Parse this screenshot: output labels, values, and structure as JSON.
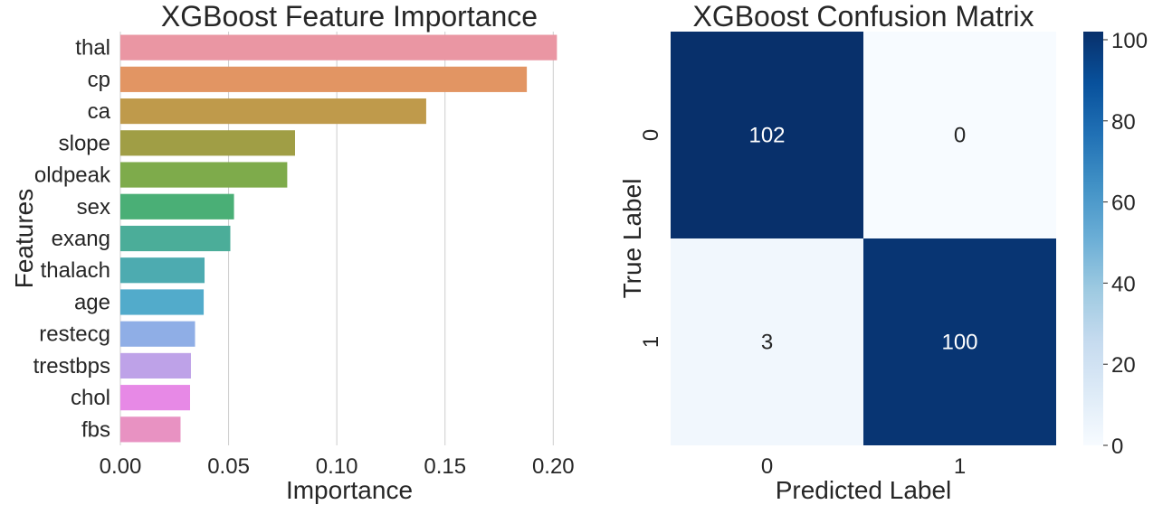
{
  "chart_data": [
    {
      "type": "bar",
      "orientation": "horizontal",
      "title": "XGBoost Feature Importance",
      "xlabel": "Importance",
      "ylabel": "Features",
      "categories": [
        "thal",
        "cp",
        "ca",
        "slope",
        "oldpeak",
        "sex",
        "exang",
        "thalach",
        "age",
        "restecg",
        "trestbps",
        "chol",
        "fbs"
      ],
      "values": [
        0.2017,
        0.1878,
        0.1413,
        0.0807,
        0.0771,
        0.0525,
        0.0508,
        0.0389,
        0.0385,
        0.0345,
        0.0326,
        0.0322,
        0.0278
      ],
      "colors": [
        "#ea96a3",
        "#e29563",
        "#bf9a4b",
        "#a09e45",
        "#7eab4b",
        "#4aaf76",
        "#4bad99",
        "#4dabb0",
        "#52abcb",
        "#8faee6",
        "#bea2e8",
        "#e789e6",
        "#e892c2"
      ],
      "xticks": [
        "0.00",
        "0.05",
        "0.10",
        "0.15",
        "0.20"
      ],
      "xtick_values": [
        0,
        0.05,
        0.1,
        0.15,
        0.2
      ],
      "xlim": [
        0,
        0.212
      ],
      "grid": "vertical"
    },
    {
      "type": "heatmap",
      "title": "XGBoost Confusion Matrix",
      "xlabel": "Predicted Label",
      "ylabel": "True Label",
      "xticks": [
        "0",
        "1"
      ],
      "yticks": [
        "0",
        "1"
      ],
      "matrix": [
        [
          102,
          0
        ],
        [
          3,
          100
        ]
      ],
      "annotations": [
        [
          "102",
          "0"
        ],
        [
          "3",
          "100"
        ]
      ],
      "colormap": "Blues",
      "colorbar": {
        "range": [
          0,
          102
        ],
        "ticks": [
          "0",
          "20",
          "40",
          "60",
          "80",
          "100"
        ],
        "tick_values": [
          0,
          20,
          40,
          60,
          80,
          100
        ]
      }
    }
  ]
}
